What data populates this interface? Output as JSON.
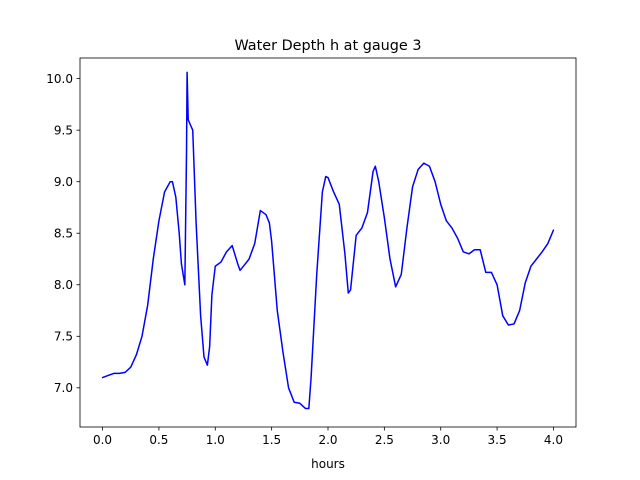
{
  "chart_data": {
    "type": "line",
    "title": "Water Depth h at gauge 3",
    "xlabel": "hours",
    "ylabel": "",
    "xlim": [
      -0.2,
      4.2
    ],
    "ylim": [
      6.62,
      10.2
    ],
    "xticks": [
      0.0,
      0.5,
      1.0,
      1.5,
      2.0,
      2.5,
      3.0,
      3.5,
      4.0
    ],
    "xtick_labels": [
      "0.0",
      "0.5",
      "1.0",
      "1.5",
      "2.0",
      "2.5",
      "3.0",
      "3.5",
      "4.0"
    ],
    "yticks": [
      7.0,
      7.5,
      8.0,
      8.5,
      9.0,
      9.5,
      10.0
    ],
    "ytick_labels": [
      "7.0",
      "7.5",
      "8.0",
      "8.5",
      "9.0",
      "9.5",
      "10.0"
    ],
    "grid": false,
    "series": [
      {
        "color": "#0000ff",
        "x": [
          0.0,
          0.05,
          0.1,
          0.15,
          0.2,
          0.25,
          0.3,
          0.35,
          0.4,
          0.45,
          0.5,
          0.55,
          0.6,
          0.62,
          0.65,
          0.68,
          0.7,
          0.73,
          0.745,
          0.75,
          0.76,
          0.78,
          0.8,
          0.83,
          0.87,
          0.9,
          0.93,
          0.95,
          0.97,
          1.0,
          1.05,
          1.1,
          1.15,
          1.2,
          1.22,
          1.25,
          1.3,
          1.35,
          1.4,
          1.45,
          1.48,
          1.5,
          1.55,
          1.6,
          1.65,
          1.7,
          1.75,
          1.8,
          1.83,
          1.85,
          1.9,
          1.95,
          1.98,
          2.0,
          2.05,
          2.1,
          2.15,
          2.18,
          2.2,
          2.25,
          2.3,
          2.35,
          2.4,
          2.42,
          2.45,
          2.5,
          2.55,
          2.6,
          2.65,
          2.7,
          2.75,
          2.8,
          2.85,
          2.9,
          2.95,
          3.0,
          3.05,
          3.1,
          3.15,
          3.2,
          3.25,
          3.3,
          3.35,
          3.4,
          3.45,
          3.5,
          3.55,
          3.6,
          3.65,
          3.7,
          3.75,
          3.8,
          3.85,
          3.9,
          3.95,
          4.0
        ],
        "y": [
          7.1,
          7.12,
          7.14,
          7.14,
          7.15,
          7.2,
          7.32,
          7.5,
          7.8,
          8.25,
          8.62,
          8.9,
          9.0,
          9.0,
          8.85,
          8.5,
          8.2,
          8.0,
          9.3,
          10.06,
          9.6,
          9.55,
          9.5,
          8.6,
          7.7,
          7.3,
          7.22,
          7.4,
          7.9,
          8.18,
          8.22,
          8.32,
          8.38,
          8.2,
          8.14,
          8.18,
          8.25,
          8.4,
          8.72,
          8.68,
          8.6,
          8.42,
          7.75,
          7.35,
          7.0,
          6.86,
          6.85,
          6.8,
          6.8,
          7.1,
          8.1,
          8.9,
          9.05,
          9.04,
          8.9,
          8.78,
          8.3,
          7.92,
          7.95,
          8.48,
          8.55,
          8.7,
          9.1,
          9.15,
          9.0,
          8.65,
          8.25,
          7.98,
          8.1,
          8.55,
          8.95,
          9.12,
          9.18,
          9.15,
          9.0,
          8.78,
          8.62,
          8.55,
          8.45,
          8.32,
          8.3,
          8.34,
          8.34,
          8.12,
          8.12,
          8.0,
          7.7,
          7.61,
          7.62,
          7.75,
          8.02,
          8.18,
          8.25,
          8.32,
          8.4,
          8.53
        ]
      }
    ]
  }
}
